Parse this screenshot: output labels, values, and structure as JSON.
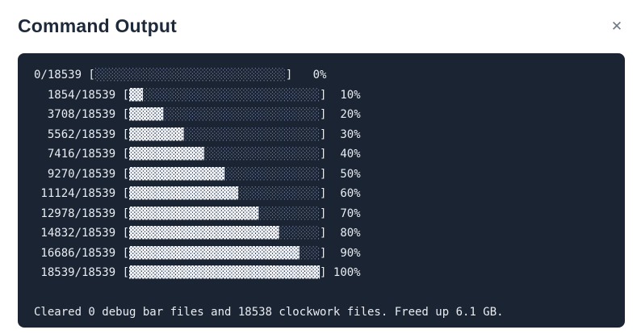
{
  "dialog": {
    "title": "Command Output",
    "close_icon": "✕"
  },
  "colors": {
    "page_background": "#ffffff",
    "title_text": "#1e2a3a",
    "close_icon": "#6e7887",
    "terminal_background": "#1a2433",
    "terminal_text": "#e9edf2",
    "bar_filled": "#f2f5f9",
    "bar_empty": "#6b7793"
  },
  "terminal": {
    "bar": {
      "filled_char": "▓",
      "empty_char": "░",
      "width": 28,
      "total": 18539
    },
    "progress_lines": [
      {
        "current": 0,
        "percent": 0,
        "prefix": "0/18539 [",
        "filled": 0,
        "empty": 28,
        "suffix": "]   0%"
      },
      {
        "current": 1854,
        "percent": 10,
        "prefix": "  1854/18539 [",
        "filled": 2,
        "empty": 26,
        "suffix": "]  10%"
      },
      {
        "current": 3708,
        "percent": 20,
        "prefix": "  3708/18539 [",
        "filled": 5,
        "empty": 23,
        "suffix": "]  20%"
      },
      {
        "current": 5562,
        "percent": 30,
        "prefix": "  5562/18539 [",
        "filled": 8,
        "empty": 20,
        "suffix": "]  30%"
      },
      {
        "current": 7416,
        "percent": 40,
        "prefix": "  7416/18539 [",
        "filled": 11,
        "empty": 17,
        "suffix": "]  40%"
      },
      {
        "current": 9270,
        "percent": 50,
        "prefix": "  9270/18539 [",
        "filled": 14,
        "empty": 14,
        "suffix": "]  50%"
      },
      {
        "current": 11124,
        "percent": 60,
        "prefix": " 11124/18539 [",
        "filled": 16,
        "empty": 12,
        "suffix": "]  60%"
      },
      {
        "current": 12978,
        "percent": 70,
        "prefix": " 12978/18539 [",
        "filled": 19,
        "empty": 9,
        "suffix": "]  70%"
      },
      {
        "current": 14832,
        "percent": 80,
        "prefix": " 14832/18539 [",
        "filled": 22,
        "empty": 6,
        "suffix": "]  80%"
      },
      {
        "current": 16686,
        "percent": 90,
        "prefix": " 16686/18539 [",
        "filled": 25,
        "empty": 3,
        "suffix": "]  90%"
      },
      {
        "current": 18539,
        "percent": 100,
        "prefix": " 18539/18539 [",
        "filled": 28,
        "empty": 0,
        "suffix": "] 100%"
      }
    ],
    "message": "Cleared 0 debug bar files and 18538 clockwork files. Freed up 6.1 GB."
  }
}
